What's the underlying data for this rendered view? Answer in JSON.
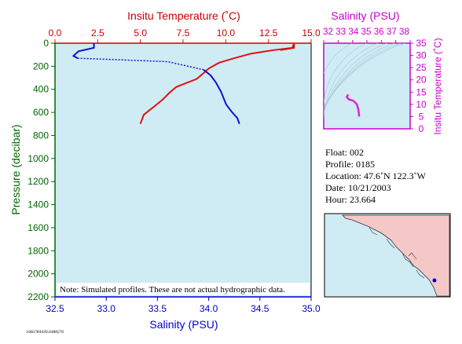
{
  "chart_data": [
    {
      "type": "line",
      "top_axis_label": "Insitu Temperature (˚C)",
      "top_axis_ticks": [
        "0.0",
        "2.5",
        "5.0",
        "7.5",
        "10.0",
        "12.5",
        "15.0"
      ],
      "top_axis_range": [
        0,
        15
      ],
      "bottom_axis_label": "Salinity (PSU)",
      "bottom_axis_ticks": [
        "32.5",
        "33.0",
        "33.5",
        "34.0",
        "34.5",
        "35.0"
      ],
      "bottom_axis_range": [
        32.5,
        35
      ],
      "ylabel": "Pressure (decibar)",
      "y_ticks": [
        "0",
        "200",
        "400",
        "600",
        "800",
        "1000",
        "1200",
        "1400",
        "1600",
        "1800",
        "2000",
        "2200"
      ],
      "ylim": [
        0,
        2200
      ],
      "y_inverted": true,
      "note": "Note: Simulated profiles.  These are not actual hydrographic data.",
      "series": [
        {
          "axis": "top",
          "color": "#e01010",
          "points": [
            [
              14.0,
              0
            ],
            [
              13.9,
              40
            ],
            [
              12.8,
              60
            ],
            [
              11.5,
              90
            ],
            [
              10.5,
              130
            ],
            [
              9.6,
              170
            ],
            [
              9.0,
              220
            ],
            [
              8.7,
              260
            ],
            [
              8.3,
              310
            ],
            [
              7.6,
              350
            ],
            [
              7.1,
              380
            ],
            [
              6.7,
              430
            ],
            [
              6.3,
              490
            ],
            [
              5.8,
              550
            ],
            [
              5.2,
              620
            ],
            [
              5.0,
              700
            ]
          ],
          "dotted_after": [
            [
              14.0,
              0
            ],
            [
              14.0,
              40
            ],
            [
              13.2,
              60
            ]
          ]
        },
        {
          "axis": "bottom",
          "color": "#1010d0",
          "points": [
            [
              32.88,
              0
            ],
            [
              32.88,
              40
            ],
            [
              32.73,
              70
            ],
            [
              32.68,
              110
            ],
            [
              32.72,
              130
            ],
            [
              33.6,
              160
            ],
            [
              33.95,
              230
            ],
            [
              34.02,
              280
            ],
            [
              34.07,
              340
            ],
            [
              34.12,
              420
            ],
            [
              34.17,
              530
            ],
            [
              34.22,
              590
            ],
            [
              34.28,
              650
            ],
            [
              34.3,
              700
            ]
          ]
        }
      ]
    },
    {
      "type": "scatter",
      "title": "Salinity (PSU)",
      "x_ticks": [
        "32",
        "33",
        "34",
        "35",
        "36",
        "37",
        "38"
      ],
      "x_tick_text": "32 33 34 35 36 37 38",
      "xlim": [
        32,
        38
      ],
      "ylabel": "Insitu Temperature (˚C)",
      "y_ticks": [
        "0",
        "5",
        "10",
        "15",
        "20",
        "25",
        "30",
        "35"
      ],
      "ylim": [
        0,
        35
      ],
      "color": "#e020e0",
      "points": [
        [
          33.7,
          14
        ],
        [
          33.6,
          13
        ],
        [
          33.75,
          12
        ],
        [
          34.05,
          11.5
        ],
        [
          34.3,
          10
        ],
        [
          34.4,
          8
        ],
        [
          34.45,
          6
        ],
        [
          34.45,
          5
        ]
      ]
    }
  ],
  "float_info": {
    "float": "Float:  002",
    "profile": "Profile:  0185",
    "location": "Location:  47.6˚N  122.3˚W",
    "date": "Date:  10/21/2003",
    "hour": "Hour:  23.664"
  },
  "footer_id": "1066784439.0388276",
  "colors": {
    "plot_bg": "#cfecf4",
    "temperature": "#e01010",
    "salinity": "#1010d0",
    "ts": "#e020e0",
    "axis_green": "#006600",
    "land": "#f5c8c8"
  }
}
